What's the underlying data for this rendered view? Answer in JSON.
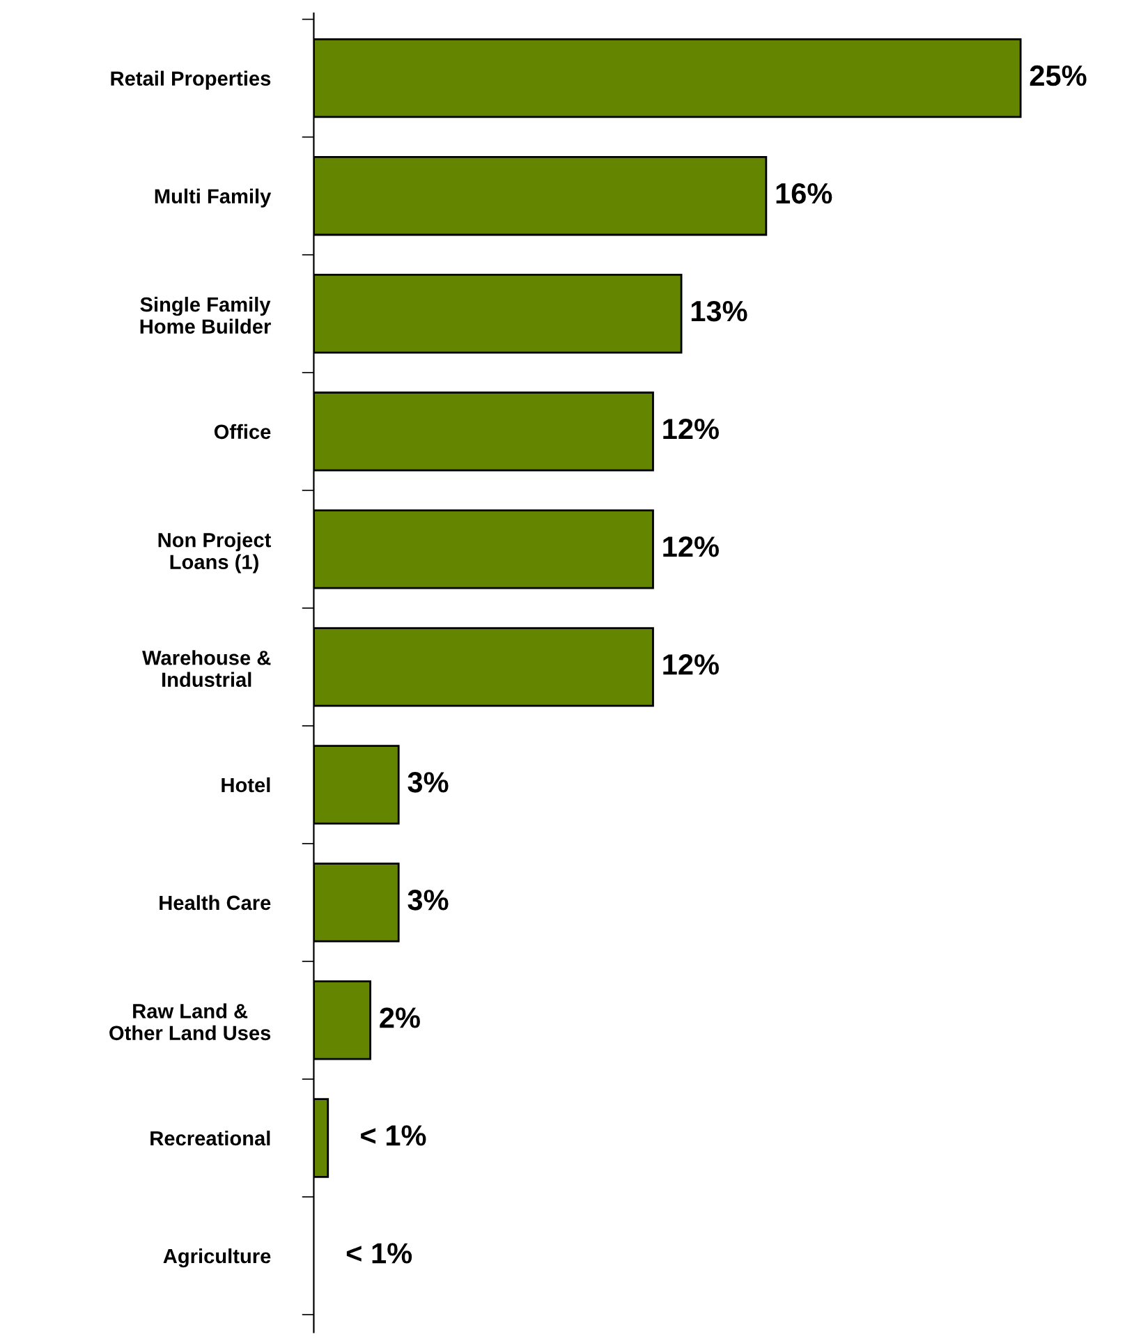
{
  "chart_data": {
    "type": "bar",
    "orientation": "horizontal",
    "categories": [
      "Retail Properties",
      "Multi Family",
      "Single Family\nHome Builder",
      "Office",
      "Non Project\nLoans (1)",
      "Warehouse &\nIndustrial",
      "Hotel",
      "Health Care",
      "Raw Land &\nOther Land Uses",
      "Recreational",
      "Agriculture"
    ],
    "values": [
      25,
      16,
      13,
      12,
      12,
      12,
      3,
      3,
      2,
      0.5,
      0
    ],
    "value_labels": [
      "25%",
      "16%",
      "13%",
      "12%",
      "12%",
      "12%",
      "3%",
      "3%",
      "2%",
      "< 1%",
      "< 1%"
    ],
    "color": "#638500",
    "grid": false
  }
}
